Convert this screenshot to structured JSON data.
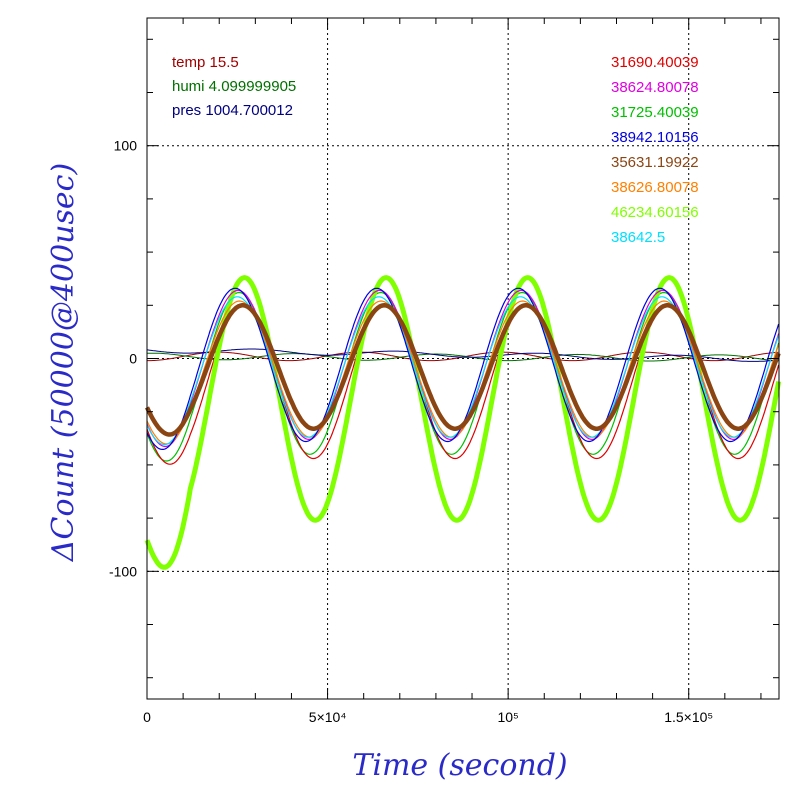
{
  "chart_data": {
    "type": "line",
    "xlabel": "Time (second)",
    "ylabel": "ΔCount (50000@400usec)",
    "xlim": [
      0,
      175000
    ],
    "ylim": [
      -160,
      160
    ],
    "x_ticks": [
      {
        "value": 0,
        "label": "0"
      },
      {
        "value": 50000,
        "label": "5×10⁴"
      },
      {
        "value": 100000,
        "label": "10⁵"
      },
      {
        "value": 150000,
        "label": "1.5×10⁵"
      }
    ],
    "y_ticks": [
      {
        "value": 100,
        "label": "100"
      },
      {
        "value": 0,
        "label": "0"
      },
      {
        "value": -100,
        "label": "-100"
      }
    ],
    "grid": "dotted at major ticks",
    "env_legend": [
      {
        "text": "temp 15.5",
        "color": "#a00000"
      },
      {
        "text": "humi 4.099999905",
        "color": "#007000"
      },
      {
        "text": "pres 1004.700012",
        "color": "#000080"
      }
    ],
    "series": [
      {
        "name": "31690.40039",
        "color": "#e00000",
        "mean": -11,
        "amp": 36,
        "phase": 26500,
        "lw": 1.2
      },
      {
        "name": "38624.80078",
        "color": "#e000e0",
        "mean": -3,
        "amp": 35,
        "phase": 25200,
        "lw": 1.2
      },
      {
        "name": "31725.40039",
        "color": "#00c000",
        "mean": -7,
        "amp": 38,
        "phase": 25500,
        "lw": 1.2
      },
      {
        "name": "38942.10156",
        "color": "#0000e0",
        "mean": -3,
        "amp": 36,
        "phase": 24400,
        "lw": 1.2
      },
      {
        "name": "35631.19922",
        "color": "#8b4513",
        "mean": -4,
        "amp": 29,
        "phase": 26500,
        "lw": 4.5
      },
      {
        "name": "38626.80078",
        "color": "#ff8000",
        "mean": -5,
        "amp": 32,
        "phase": 25600,
        "lw": 1.2
      },
      {
        "name": "46234.60156",
        "color": "#80ff00",
        "mean": -19,
        "amp": 57,
        "phase": 27000,
        "lw": 5
      },
      {
        "name": "38642.5",
        "color": "#00e0ff",
        "mean": -4,
        "amp": 33,
        "phase": 25000,
        "lw": 1.2
      }
    ],
    "period": 39200
  }
}
